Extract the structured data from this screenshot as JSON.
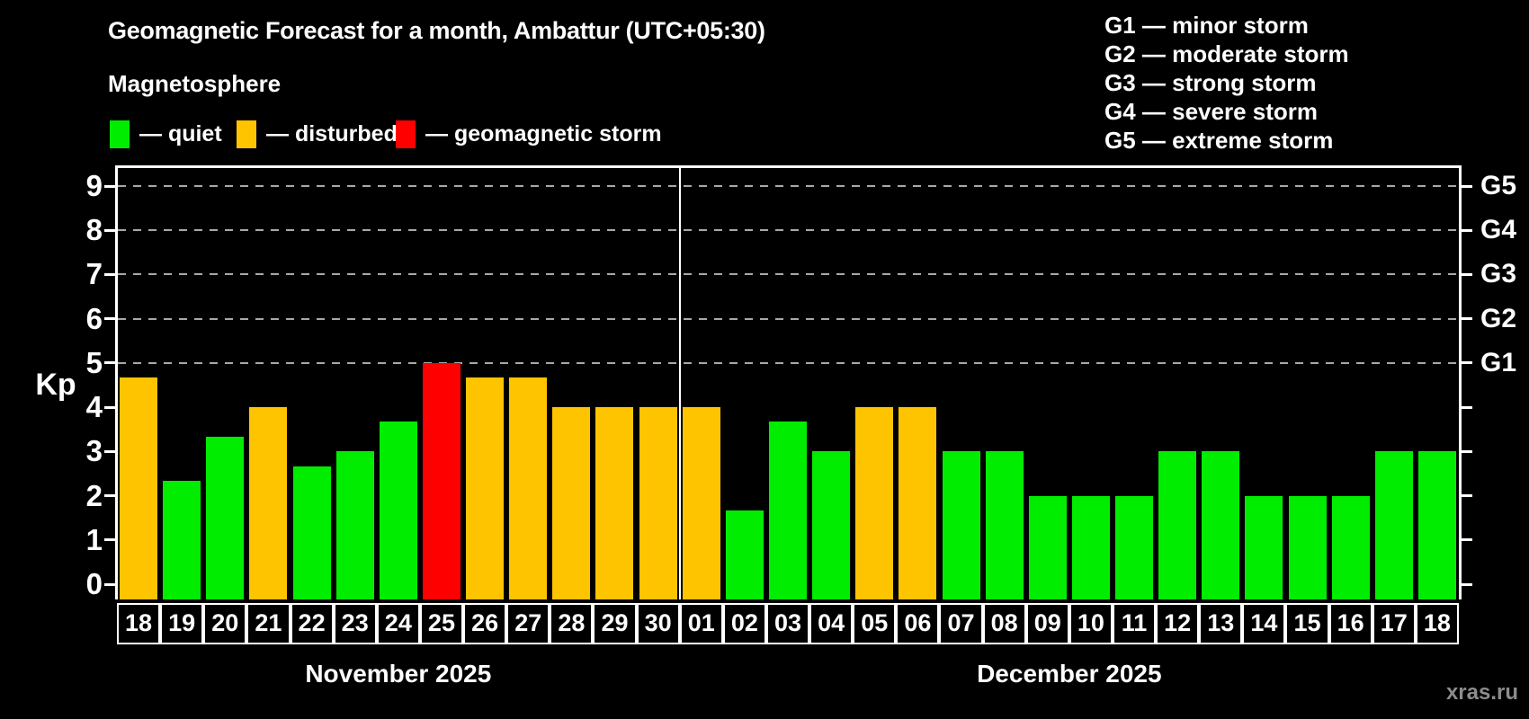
{
  "header": {
    "title": "Geomagnetic Forecast for a month, Ambattur (UTC+05:30)",
    "subtitle": "Magnetosphere"
  },
  "colors": {
    "quiet": "#00ED00",
    "disturbed": "#FFC400",
    "storm": "#FF0000",
    "grid": "#A8A8A8",
    "axis": "#FFFFFF",
    "watermark": "#8C8C8C"
  },
  "legend": {
    "items": [
      {
        "status": "quiet",
        "label": "— quiet"
      },
      {
        "status": "disturbed",
        "label": "— disturbed"
      },
      {
        "status": "storm",
        "label": "— geomagnetic storm"
      }
    ]
  },
  "g_legend": [
    "G1 — minor storm",
    "G2 — moderate storm",
    "G3 — strong storm",
    "G4 — severe storm",
    "G5 — extreme storm"
  ],
  "chart_data": {
    "type": "bar",
    "ylabel": "Kp",
    "ylim": [
      0,
      9
    ],
    "y_ticks": [
      0,
      1,
      2,
      3,
      4,
      5,
      6,
      7,
      8,
      9
    ],
    "gridlines_at": [
      5,
      6,
      7,
      8,
      9
    ],
    "right_axis": [
      {
        "kp": 5,
        "label": "G1"
      },
      {
        "kp": 6,
        "label": "G2"
      },
      {
        "kp": 7,
        "label": "G3"
      },
      {
        "kp": 8,
        "label": "G4"
      },
      {
        "kp": 9,
        "label": "G5"
      }
    ],
    "legend_note": "green=quiet, orange=disturbed, red=geomagnetic storm",
    "months": [
      {
        "label": "November 2025",
        "days": [
          {
            "day": "18",
            "kp": 4.67,
            "status": "disturbed"
          },
          {
            "day": "19",
            "kp": 2.33,
            "status": "quiet"
          },
          {
            "day": "20",
            "kp": 3.33,
            "status": "quiet"
          },
          {
            "day": "21",
            "kp": 4,
            "status": "disturbed"
          },
          {
            "day": "22",
            "kp": 2.67,
            "status": "quiet"
          },
          {
            "day": "23",
            "kp": 3,
            "status": "quiet"
          },
          {
            "day": "24",
            "kp": 3.67,
            "status": "quiet"
          },
          {
            "day": "25",
            "kp": 5,
            "status": "storm"
          },
          {
            "day": "26",
            "kp": 4.67,
            "status": "disturbed"
          },
          {
            "day": "27",
            "kp": 4.67,
            "status": "disturbed"
          },
          {
            "day": "28",
            "kp": 4,
            "status": "disturbed"
          },
          {
            "day": "29",
            "kp": 4,
            "status": "disturbed"
          },
          {
            "day": "30",
            "kp": 4,
            "status": "disturbed"
          }
        ]
      },
      {
        "label": "December 2025",
        "days": [
          {
            "day": "01",
            "kp": 4,
            "status": "disturbed"
          },
          {
            "day": "02",
            "kp": 1.67,
            "status": "quiet"
          },
          {
            "day": "03",
            "kp": 3.67,
            "status": "quiet"
          },
          {
            "day": "04",
            "kp": 3,
            "status": "quiet"
          },
          {
            "day": "05",
            "kp": 4,
            "status": "disturbed"
          },
          {
            "day": "06",
            "kp": 4,
            "status": "disturbed"
          },
          {
            "day": "07",
            "kp": 3,
            "status": "quiet"
          },
          {
            "day": "08",
            "kp": 3,
            "status": "quiet"
          },
          {
            "day": "09",
            "kp": 2,
            "status": "quiet"
          },
          {
            "day": "10",
            "kp": 2,
            "status": "quiet"
          },
          {
            "day": "11",
            "kp": 2,
            "status": "quiet"
          },
          {
            "day": "12",
            "kp": 3,
            "status": "quiet"
          },
          {
            "day": "13",
            "kp": 3,
            "status": "quiet"
          },
          {
            "day": "14",
            "kp": 2,
            "status": "quiet"
          },
          {
            "day": "15",
            "kp": 2,
            "status": "quiet"
          },
          {
            "day": "16",
            "kp": 2,
            "status": "quiet"
          },
          {
            "day": "17",
            "kp": 3,
            "status": "quiet"
          },
          {
            "day": "18",
            "kp": 3,
            "status": "quiet"
          }
        ]
      }
    ]
  },
  "watermark": "xras.ru"
}
